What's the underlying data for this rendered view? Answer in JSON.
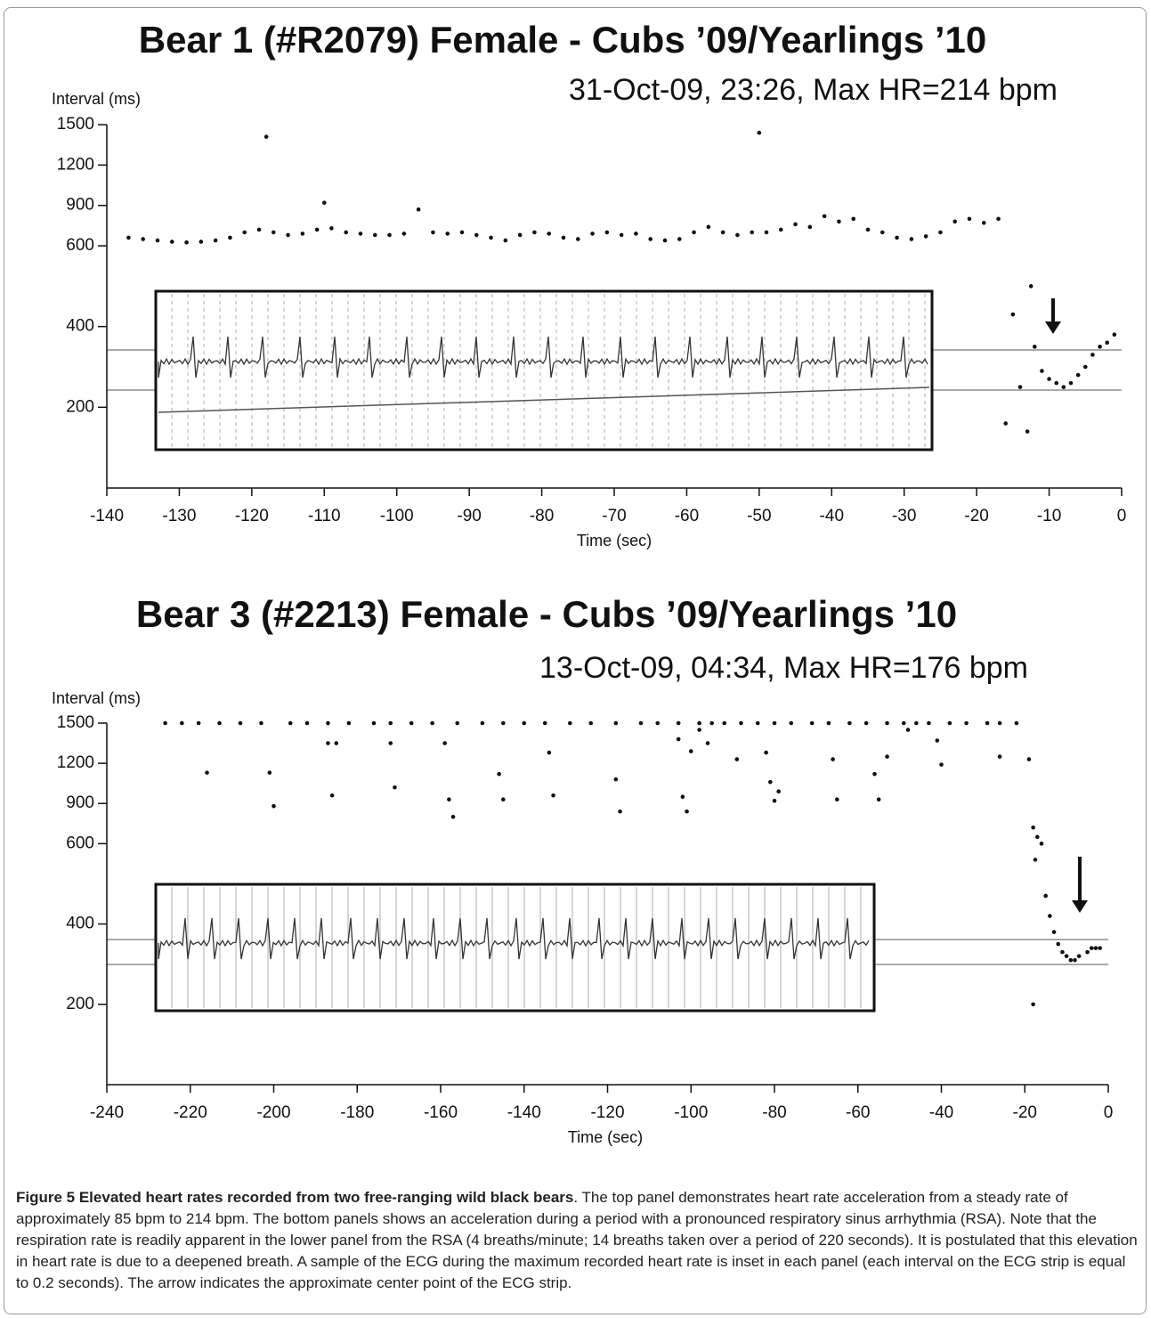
{
  "chart_data": [
    {
      "type": "scatter",
      "title": "Bear 1 (#R2079) Female - Cubs ’09/Yearlings ’10",
      "subtitle": "31-Oct-09, 23:26, Max HR=214 bpm",
      "y_label": "Interval (ms)",
      "x_label": "Time (sec)",
      "color": "#111111",
      "x": [
        -137,
        -135,
        -133,
        -131,
        -129,
        -127,
        -125,
        -123,
        -121,
        -119,
        -118,
        -117,
        -115,
        -113,
        -111,
        -110,
        -109,
        -107,
        -105,
        -103,
        -101,
        -99,
        -97,
        -95,
        -93,
        -91,
        -89,
        -87,
        -85,
        -83,
        -81,
        -79,
        -77,
        -75,
        -73,
        -71,
        -69,
        -67,
        -65,
        -63,
        -61,
        -59,
        -57,
        -55,
        -53,
        -51,
        -50,
        -49,
        -47,
        -45,
        -43,
        -41,
        -39,
        -37,
        -35,
        -33,
        -31,
        -29,
        -27,
        -25,
        -23,
        -21,
        -19,
        -17,
        -16,
        -15,
        -14,
        -13,
        -12.5,
        -12,
        -11,
        -10,
        -9,
        -8,
        -7,
        -6,
        -5,
        -4,
        -3,
        -2,
        -1
      ],
      "values": [
        660,
        650,
        640,
        630,
        625,
        630,
        640,
        660,
        700,
        720,
        1410,
        700,
        680,
        690,
        720,
        920,
        730,
        700,
        690,
        680,
        680,
        690,
        870,
        700,
        690,
        700,
        680,
        660,
        640,
        680,
        700,
        690,
        660,
        650,
        690,
        700,
        680,
        690,
        650,
        640,
        650,
        700,
        740,
        700,
        680,
        700,
        1440,
        700,
        720,
        760,
        740,
        820,
        780,
        800,
        720,
        700,
        660,
        650,
        670,
        700,
        780,
        800,
        770,
        800,
        160,
        430,
        250,
        140,
        500,
        350,
        290,
        270,
        260,
        250,
        260,
        280,
        300,
        330,
        350,
        360,
        380
      ],
      "xlim": [
        -140,
        0
      ],
      "xticks": [
        -140,
        -130,
        -120,
        -110,
        -100,
        -90,
        -80,
        -70,
        -60,
        -50,
        -40,
        -30,
        -20,
        -10,
        0
      ],
      "ylim": [
        0,
        1500
      ],
      "yticks": [
        200,
        400,
        600,
        900,
        1200,
        1500
      ]
    },
    {
      "type": "scatter",
      "title": "Bear 3 (#2213) Female - Cubs ’09/Yearlings ’10",
      "subtitle": "13-Oct-09, 04:34, Max HR=176 bpm",
      "y_label": "Interval (ms)",
      "x_label": "Time (sec)",
      "color": "#111111",
      "x": [
        -226,
        -222,
        -218,
        -213,
        -208,
        -203,
        -196,
        -192,
        -187,
        -182,
        -176,
        -172,
        -167,
        -162,
        -156,
        -150,
        -145,
        -140,
        -135,
        -129,
        -124,
        -118,
        -112,
        -108,
        -103,
        -98,
        -95,
        -92,
        -88,
        -84,
        -80,
        -76,
        -71,
        -67,
        -62,
        -58,
        -53,
        -49,
        -46,
        -43,
        -38,
        -34,
        -29,
        -26,
        -22,
        -216,
        -201,
        -200,
        -187,
        -185,
        -186,
        -172,
        -171,
        -159,
        -158,
        -157,
        -146,
        -145,
        -134,
        -133,
        -118,
        -117,
        -103,
        -102,
        -101,
        -100,
        -98,
        -96,
        -89,
        -82,
        -81,
        -80,
        -79,
        -66,
        -65,
        -56,
        -55,
        -53,
        -48,
        -41,
        -40,
        -26,
        -19,
        -18,
        -17,
        -16,
        -17.5,
        -15,
        -14,
        -13,
        -12,
        -11,
        -10,
        -9,
        -8,
        -7,
        -5,
        -4,
        -3,
        -2,
        -18
      ],
      "values": [
        1500,
        1500,
        1500,
        1500,
        1500,
        1500,
        1500,
        1500,
        1500,
        1500,
        1500,
        1500,
        1500,
        1500,
        1500,
        1500,
        1500,
        1500,
        1500,
        1500,
        1500,
        1500,
        1500,
        1500,
        1500,
        1500,
        1500,
        1500,
        1500,
        1500,
        1500,
        1500,
        1500,
        1500,
        1500,
        1500,
        1500,
        1500,
        1500,
        1500,
        1500,
        1500,
        1500,
        1500,
        1500,
        1130,
        1130,
        880,
        1350,
        1350,
        960,
        1350,
        1020,
        1350,
        930,
        800,
        1120,
        930,
        1280,
        960,
        1080,
        840,
        1380,
        950,
        840,
        1290,
        1450,
        1350,
        1230,
        1280,
        1060,
        920,
        990,
        1230,
        930,
        1120,
        930,
        1250,
        1450,
        1370,
        1190,
        1250,
        1230,
        720,
        650,
        600,
        560,
        470,
        420,
        380,
        350,
        330,
        320,
        310,
        310,
        320,
        330,
        340,
        340,
        340,
        200
      ],
      "xlim": [
        -240,
        0
      ],
      "xticks": [
        -240,
        -220,
        -200,
        -180,
        -160,
        -140,
        -120,
        -100,
        -80,
        -60,
        -40,
        -20,
        0
      ],
      "ylim": [
        0,
        1500
      ],
      "yticks": [
        200,
        400,
        600,
        900,
        1200,
        1500
      ]
    }
  ],
  "caption": {
    "label": "Figure 5 Elevated heart rates recorded from two free-ranging wild black bears",
    "text": ". The top panel demonstrates heart rate acceleration from a steady rate of approximately 85 bpm to 214 bpm. The bottom panels shows an acceleration during a period with a pronounced respiratory sinus arrhythmia (RSA). Note that the respiration rate is readily apparent in the lower panel from the RSA (4 breaths/minute; 14 breaths taken over a period of 220 seconds). It is postulated that this elevation in heart rate is due to a deepened breath. A sample of the ECG during the maximum recorded heart rate is inset in each panel (each interval on the ECG strip is equal to 0.2 seconds). The arrow indicates the approximate center point of the ECG strip."
  }
}
